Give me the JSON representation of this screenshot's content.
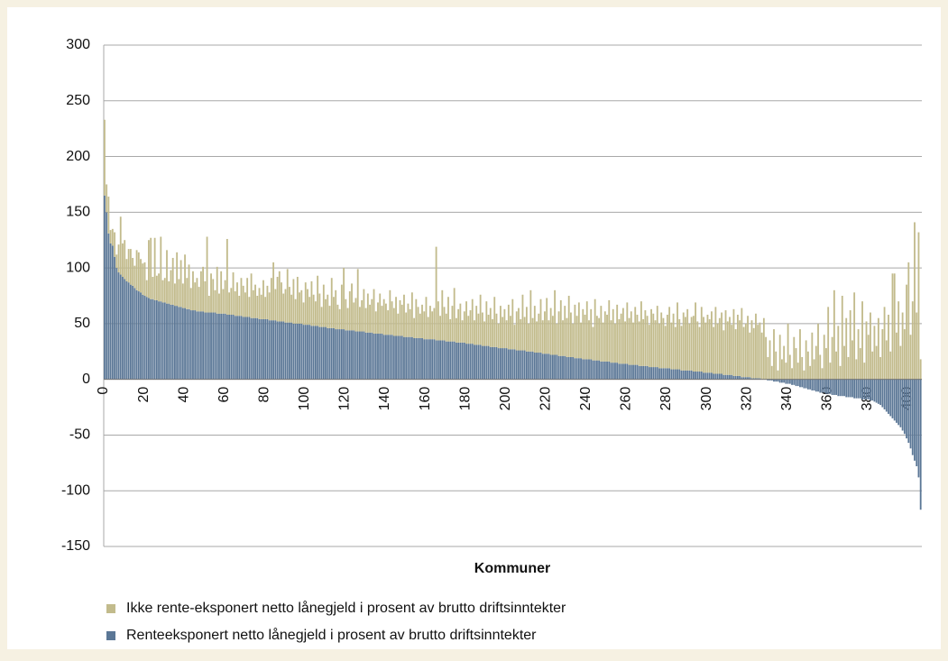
{
  "chart_data": {
    "type": "bar",
    "stacked": true,
    "grid": true,
    "xlabel": "Kommuner",
    "xlim": [
      0,
      407
    ],
    "xticks": [
      0,
      20,
      40,
      60,
      80,
      100,
      120,
      140,
      160,
      180,
      200,
      220,
      240,
      260,
      280,
      300,
      320,
      340,
      360,
      380,
      400
    ],
    "ylim": [
      -150,
      300
    ],
    "yticks": [
      -150,
      -100,
      -50,
      0,
      50,
      100,
      150,
      200,
      250,
      300
    ],
    "x": [
      0,
      1,
      2,
      3,
      4,
      5,
      6,
      7,
      8,
      9,
      10,
      11,
      12,
      13,
      14,
      15,
      16,
      17,
      18,
      19,
      20,
      21,
      22,
      23,
      24,
      25,
      26,
      27,
      28,
      29,
      30,
      31,
      32,
      33,
      34,
      35,
      36,
      37,
      38,
      39,
      40,
      41,
      42,
      43,
      44,
      45,
      46,
      47,
      48,
      49,
      50,
      51,
      52,
      53,
      54,
      55,
      56,
      57,
      58,
      59,
      60,
      61,
      62,
      63,
      64,
      65,
      66,
      67,
      68,
      69,
      70,
      71,
      72,
      73,
      74,
      75,
      76,
      77,
      78,
      79,
      80,
      81,
      82,
      83,
      84,
      85,
      86,
      87,
      88,
      89,
      90,
      91,
      92,
      93,
      94,
      95,
      96,
      97,
      98,
      99,
      100,
      101,
      102,
      103,
      104,
      105,
      106,
      107,
      108,
      109,
      110,
      111,
      112,
      113,
      114,
      115,
      116,
      117,
      118,
      119,
      120,
      121,
      122,
      123,
      124,
      125,
      126,
      127,
      128,
      129,
      130,
      131,
      132,
      133,
      134,
      135,
      136,
      137,
      138,
      139,
      140,
      141,
      142,
      143,
      144,
      145,
      146,
      147,
      148,
      149,
      150,
      151,
      152,
      153,
      154,
      155,
      156,
      157,
      158,
      159,
      160,
      161,
      162,
      163,
      164,
      165,
      166,
      167,
      168,
      169,
      170,
      171,
      172,
      173,
      174,
      175,
      176,
      177,
      178,
      179,
      180,
      181,
      182,
      183,
      184,
      185,
      186,
      187,
      188,
      189,
      190,
      191,
      192,
      193,
      194,
      195,
      196,
      197,
      198,
      199,
      200,
      201,
      202,
      203,
      204,
      205,
      206,
      207,
      208,
      209,
      210,
      211,
      212,
      213,
      214,
      215,
      216,
      217,
      218,
      219,
      220,
      221,
      222,
      223,
      224,
      225,
      226,
      227,
      228,
      229,
      230,
      231,
      232,
      233,
      234,
      235,
      236,
      237,
      238,
      239,
      240,
      241,
      242,
      243,
      244,
      245,
      246,
      247,
      248,
      249,
      250,
      251,
      252,
      253,
      254,
      255,
      256,
      257,
      258,
      259,
      260,
      261,
      262,
      263,
      264,
      265,
      266,
      267,
      268,
      269,
      270,
      271,
      272,
      273,
      274,
      275,
      276,
      277,
      278,
      279,
      280,
      281,
      282,
      283,
      284,
      285,
      286,
      287,
      288,
      289,
      290,
      291,
      292,
      293,
      294,
      295,
      296,
      297,
      298,
      299,
      300,
      301,
      302,
      303,
      304,
      305,
      306,
      307,
      308,
      309,
      310,
      311,
      312,
      313,
      314,
      315,
      316,
      317,
      318,
      319,
      320,
      321,
      322,
      323,
      324,
      325,
      326,
      327,
      328,
      329,
      330,
      331,
      332,
      333,
      334,
      335,
      336,
      337,
      338,
      339,
      340,
      341,
      342,
      343,
      344,
      345,
      346,
      347,
      348,
      349,
      350,
      351,
      352,
      353,
      354,
      355,
      356,
      357,
      358,
      359,
      360,
      361,
      362,
      363,
      364,
      365,
      366,
      367,
      368,
      369,
      370,
      371,
      372,
      373,
      374,
      375,
      376,
      377,
      378,
      379,
      380,
      381,
      382,
      383,
      384,
      385,
      386,
      387,
      388,
      389,
      390,
      391,
      392,
      393,
      394,
      395,
      396,
      397,
      398,
      399,
      400,
      401,
      402,
      403,
      404,
      405,
      406
    ],
    "series": [
      {
        "name": "Ikke rente-eksponert netto lånegjeld i prosent av brutto driftsinntekter",
        "color": "#c2bb8c",
        "values": [
          68,
          25,
          33,
          12,
          15,
          22,
          12,
          25,
          52,
          30,
          35,
          20,
          30,
          32,
          25,
          20,
          36,
          35,
          30,
          28,
          30,
          15,
          52,
          55,
          20,
          56,
          22,
          25,
          58,
          20,
          22,
          48,
          20,
          31,
          42,
          20,
          48,
          25,
          42,
          22,
          48,
          28,
          40,
          20,
          35,
          25,
          30,
          22,
          36,
          40,
          28,
          68,
          15,
          35,
          30,
          20,
          42,
          18,
          38,
          22,
          30,
          68,
          20,
          24,
          38,
          22,
          30,
          18,
          34,
          28,
          22,
          35,
          18,
          40,
          25,
          30,
          20,
          28,
          22,
          35,
          20,
          30,
          25,
          38,
          52,
          28,
          40,
          45,
          35,
          25,
          30,
          48,
          32,
          25,
          40,
          22,
          42,
          28,
          30,
          20,
          38,
          32,
          25,
          40,
          28,
          22,
          45,
          30,
          18,
          38,
          25,
          30,
          20,
          45,
          28,
          35,
          22,
          18,
          40,
          55,
          28,
          20,
          35,
          42,
          25,
          30,
          56,
          22,
          28,
          38,
          22,
          35,
          25,
          30,
          40,
          20,
          28,
          36,
          25,
          32,
          28,
          22,
          40,
          30,
          25,
          35,
          20,
          32,
          28,
          38,
          22,
          30,
          25,
          40,
          18,
          35,
          28,
          22,
          30,
          25,
          38,
          20,
          30,
          25,
          28,
          84,
          35,
          22,
          45,
          30,
          25,
          40,
          20,
          32,
          48,
          22,
          30,
          35,
          20,
          28,
          38,
          25,
          30,
          40,
          22,
          35,
          28,
          45,
          30,
          22,
          40,
          28,
          35,
          25,
          45,
          30,
          22,
          38,
          28,
          35,
          25,
          40,
          30,
          45,
          22,
          35,
          38,
          28,
          50,
          30,
          40,
          25,
          55,
          30,
          42,
          28,
          35,
          48,
          30,
          38,
          50,
          30,
          42,
          35,
          58,
          28,
          40,
          50,
          32,
          45,
          35,
          55,
          40,
          30,
          48,
          38,
          50,
          32,
          45,
          40,
          52,
          35,
          45,
          30,
          55,
          40,
          38,
          50,
          35,
          45,
          42,
          55,
          38,
          48,
          35,
          52,
          40,
          45,
          50,
          38,
          55,
          42,
          48,
          38,
          52,
          45,
          40,
          58,
          42,
          50,
          45,
          38,
          52,
          48,
          42,
          55,
          40,
          50,
          45,
          38,
          48,
          55,
          42,
          50,
          38,
          60,
          45,
          40,
          52,
          48,
          55,
          42,
          48,
          50,
          62,
          45,
          40,
          58,
          50,
          45,
          52,
          48,
          55,
          42,
          60,
          45,
          50,
          55,
          40,
          58,
          48,
          52,
          45,
          60,
          42,
          55,
          50,
          62,
          45,
          48,
          55,
          40,
          52,
          45,
          58,
          48,
          50,
          42,
          55,
          38,
          20,
          35,
          12,
          45,
          25,
          8,
          40,
          18,
          30,
          15,
          50,
          22,
          10,
          38,
          28,
          15,
          45,
          20,
          8,
          35,
          25,
          12,
          42,
          18,
          30,
          50,
          22,
          10,
          40,
          28,
          65,
          15,
          38,
          80,
          25,
          48,
          12,
          75,
          30,
          55,
          20,
          62,
          35,
          78,
          18,
          45,
          28,
          70,
          15,
          52,
          40,
          60,
          25,
          48,
          30,
          55,
          20,
          45,
          65,
          35,
          58,
          25,
          95,
          95,
          42,
          70,
          30,
          60,
          45,
          85,
          105,
          40,
          70,
          141,
          60,
          132,
          18
        ]
      },
      {
        "name": "Renteeksponert netto lånegjeld i prosent av brutto driftsinntekter",
        "color": "#5b7796",
        "values": [
          165,
          150,
          131,
          122,
          120,
          110,
          100,
          96,
          94,
          92,
          90,
          88,
          87,
          85,
          84,
          82,
          80,
          79,
          78,
          76,
          75,
          74,
          73,
          72,
          72,
          71,
          71,
          70,
          70,
          69,
          69,
          68,
          68,
          67,
          67,
          66,
          66,
          65,
          65,
          64,
          64,
          63,
          63,
          62,
          62,
          62,
          61,
          61,
          61,
          61,
          60,
          60,
          60,
          60,
          60,
          60,
          59,
          59,
          59,
          59,
          59,
          58,
          58,
          58,
          58,
          57,
          57,
          57,
          57,
          56,
          56,
          56,
          56,
          55,
          55,
          55,
          55,
          54,
          54,
          54,
          54,
          54,
          53,
          53,
          53,
          53,
          52,
          52,
          52,
          52,
          51,
          51,
          51,
          51,
          50,
          50,
          50,
          50,
          50,
          49,
          49,
          49,
          49,
          48,
          48,
          48,
          48,
          47,
          47,
          47,
          47,
          46,
          46,
          46,
          46,
          45,
          45,
          45,
          45,
          45,
          44,
          44,
          44,
          44,
          44,
          43,
          43,
          43,
          43,
          43,
          42,
          42,
          42,
          42,
          41,
          41,
          41,
          41,
          41,
          40,
          40,
          40,
          40,
          40,
          39,
          39,
          39,
          39,
          39,
          38,
          38,
          38,
          38,
          38,
          37,
          37,
          37,
          37,
          37,
          36,
          36,
          36,
          36,
          36,
          36,
          35,
          35,
          35,
          35,
          35,
          34,
          34,
          34,
          34,
          34,
          33,
          33,
          33,
          33,
          33,
          32,
          32,
          32,
          32,
          31,
          31,
          31,
          31,
          30,
          30,
          30,
          30,
          29,
          29,
          29,
          29,
          28,
          28,
          28,
          28,
          28,
          27,
          27,
          27,
          27,
          26,
          26,
          26,
          26,
          26,
          25,
          25,
          25,
          25,
          24,
          24,
          24,
          24,
          23,
          23,
          23,
          23,
          22,
          22,
          22,
          22,
          21,
          21,
          21,
          21,
          20,
          20,
          20,
          20,
          19,
          19,
          19,
          19,
          18,
          18,
          18,
          18,
          18,
          17,
          17,
          17,
          17,
          16,
          16,
          16,
          16,
          16,
          15,
          15,
          15,
          15,
          14,
          14,
          14,
          14,
          14,
          13,
          13,
          13,
          13,
          13,
          12,
          12,
          12,
          12,
          12,
          11,
          11,
          11,
          11,
          11,
          10,
          10,
          10,
          10,
          10,
          10,
          9,
          9,
          9,
          9,
          9,
          8,
          8,
          8,
          8,
          8,
          8,
          7,
          7,
          7,
          7,
          7,
          6,
          6,
          6,
          6,
          6,
          5,
          5,
          5,
          5,
          5,
          4,
          4,
          4,
          4,
          4,
          3,
          3,
          3,
          3,
          2,
          2,
          2,
          2,
          2,
          1,
          1,
          1,
          1,
          1,
          0,
          0,
          0,
          -1,
          -1,
          -1,
          -2,
          -2,
          -2,
          -3,
          -3,
          -3,
          -4,
          -4,
          -4,
          -5,
          -5,
          -6,
          -6,
          -7,
          -7,
          -8,
          -8,
          -9,
          -9,
          -10,
          -10,
          -11,
          -11,
          -12,
          -12,
          -12,
          -13,
          -13,
          -13,
          -14,
          -14,
          -14,
          -15,
          -15,
          -15,
          -15,
          -16,
          -16,
          -16,
          -16,
          -17,
          -17,
          -17,
          -17,
          -18,
          -18,
          -18,
          -18,
          -19,
          -19,
          -20,
          -21,
          -22,
          -23,
          -25,
          -27,
          -29,
          -31,
          -33,
          -35,
          -37,
          -39,
          -41,
          -43,
          -46,
          -49,
          -53,
          -57,
          -62,
          -68,
          -73,
          -78,
          -88,
          -117
        ]
      }
    ]
  }
}
